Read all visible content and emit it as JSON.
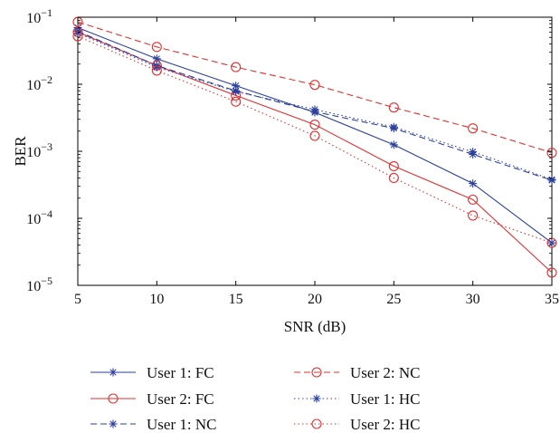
{
  "chart_data": {
    "type": "line",
    "xlabel": "SNR (dB)",
    "ylabel": "BER",
    "xlim": [
      5,
      35
    ],
    "ylim": [
      1e-05,
      0.1
    ],
    "yscale": "log",
    "grid": false,
    "legend_position": "bottom",
    "x": [
      5,
      10,
      15,
      20,
      25,
      30,
      35
    ],
    "x_tick_labels": [
      "5",
      "10",
      "15",
      "20",
      "25",
      "30",
      "35"
    ],
    "y_ticks": [
      {
        "value": 1e-05,
        "mantissa": "10",
        "exp": "−5"
      },
      {
        "value": 0.0001,
        "mantissa": "10",
        "exp": "−4"
      },
      {
        "value": 0.001,
        "mantissa": "10",
        "exp": "−3"
      },
      {
        "value": 0.01,
        "mantissa": "10",
        "exp": "−2"
      },
      {
        "value": 0.1,
        "mantissa": "10",
        "exp": "−1"
      }
    ],
    "series": [
      {
        "name": "User 1: FC",
        "color": "#2b3f9e",
        "dash": "solid",
        "marker": "asterisk",
        "values": [
          0.07,
          0.024,
          0.0095,
          0.0038,
          0.00125,
          0.00033,
          4.3e-05
        ]
      },
      {
        "name": "User 2: FC",
        "color": "#e03030",
        "dash": "solid",
        "marker": "circle",
        "values": [
          0.06,
          0.019,
          0.0068,
          0.0025,
          0.0006,
          0.00019,
          1.55e-05
        ]
      },
      {
        "name": "User 1: NC",
        "color": "#2b3f9e",
        "dash": "dashed",
        "marker": "asterisk",
        "values": [
          0.062,
          0.019,
          0.008,
          0.0039,
          0.0022,
          0.0009,
          0.00037
        ]
      },
      {
        "name": "User 2: NC",
        "color": "#e03030",
        "dash": "dashed",
        "marker": "circle",
        "values": [
          0.085,
          0.036,
          0.018,
          0.0098,
          0.0045,
          0.0022,
          0.00095
        ]
      },
      {
        "name": "User 1: HC",
        "color": "#2b3f9e",
        "dash": "dotted",
        "marker": "asterisk",
        "values": [
          0.058,
          0.018,
          0.0078,
          0.0042,
          0.0023,
          0.00098,
          0.00038
        ]
      },
      {
        "name": "User 2: HC",
        "color": "#e03030",
        "dash": "dotted",
        "marker": "circle",
        "values": [
          0.052,
          0.016,
          0.0055,
          0.0017,
          0.0004,
          0.00011,
          4.3e-05
        ]
      }
    ],
    "legend_order": [
      "User 1: FC",
      "User 2: NC",
      "User 2: FC",
      "User 1: HC",
      "User 1: NC",
      "User 2: HC"
    ]
  }
}
